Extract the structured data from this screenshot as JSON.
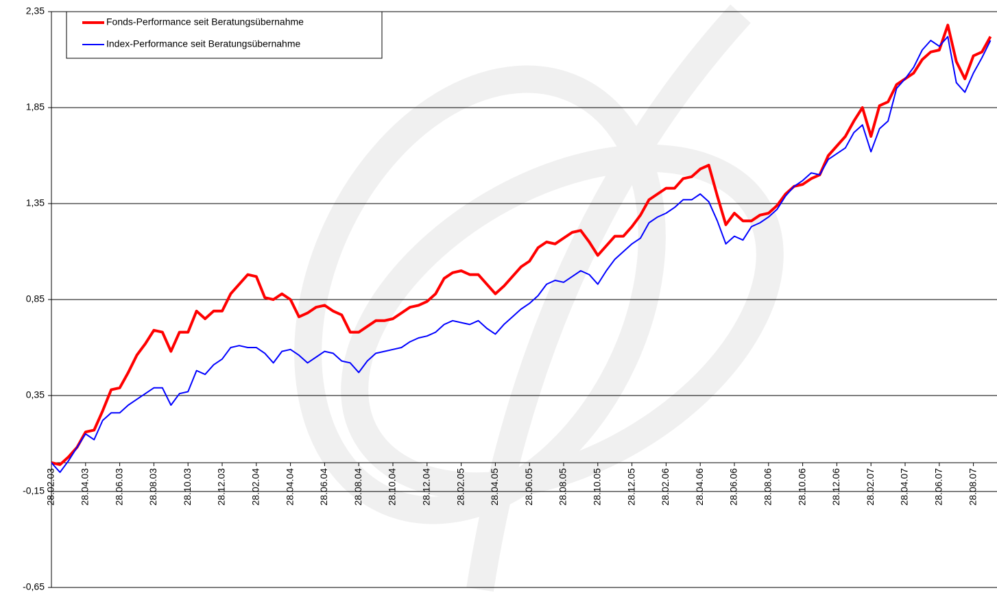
{
  "chart_data": {
    "type": "line",
    "categories": [
      "28.02.03",
      null,
      null,
      null,
      "28.04.03",
      null,
      null,
      null,
      "28.06.03",
      null,
      null,
      null,
      "28.08.03",
      null,
      null,
      null,
      "28.10.03",
      null,
      null,
      null,
      "28.12.03",
      null,
      null,
      null,
      "28.02.04",
      null,
      null,
      null,
      "28.04.04",
      null,
      null,
      null,
      "28.06.04",
      null,
      null,
      null,
      "28.08.04",
      null,
      null,
      null,
      "28.10.04",
      null,
      null,
      null,
      "28.12.04",
      null,
      null,
      null,
      "28.02.05",
      null,
      null,
      null,
      "28.04.05",
      null,
      null,
      null,
      "28.06.05",
      null,
      null,
      null,
      "28.08.05",
      null,
      null,
      null,
      "28.10.05",
      null,
      null,
      null,
      "28.12.05",
      null,
      null,
      null,
      "28.02.06",
      null,
      null,
      null,
      "28.04.06",
      null,
      null,
      null,
      "28.06.06",
      null,
      null,
      null,
      "28.08.06",
      null,
      null,
      null,
      "28.10.06",
      null,
      null,
      null,
      "28.12.06",
      null,
      null,
      null,
      "28.02.07",
      null,
      null,
      null,
      "28.04.07",
      null,
      null,
      null,
      "28.06.07",
      null,
      null,
      null,
      "28.08.07",
      null,
      null
    ],
    "series": [
      {
        "name": "Fonds-Performance seit Beratungsübernahme",
        "color": "#ff0000",
        "width": 4,
        "values": [
          0.0,
          -0.01,
          0.03,
          0.08,
          0.16,
          0.17,
          0.27,
          0.38,
          0.39,
          0.47,
          0.56,
          0.62,
          0.69,
          0.68,
          0.58,
          0.68,
          0.68,
          0.79,
          0.75,
          0.79,
          0.79,
          0.88,
          0.93,
          0.98,
          0.97,
          0.86,
          0.85,
          0.88,
          0.85,
          0.76,
          0.78,
          0.81,
          0.82,
          0.79,
          0.77,
          0.68,
          0.68,
          0.71,
          0.74,
          0.74,
          0.75,
          0.78,
          0.81,
          0.82,
          0.84,
          0.88,
          0.96,
          0.99,
          1.0,
          0.98,
          0.98,
          0.93,
          0.88,
          0.92,
          0.97,
          1.02,
          1.05,
          1.12,
          1.15,
          1.14,
          1.17,
          1.2,
          1.21,
          1.15,
          1.08,
          1.13,
          1.18,
          1.18,
          1.23,
          1.29,
          1.37,
          1.4,
          1.43,
          1.43,
          1.48,
          1.49,
          1.53,
          1.55,
          1.39,
          1.24,
          1.3,
          1.26,
          1.26,
          1.29,
          1.3,
          1.34,
          1.4,
          1.44,
          1.45,
          1.48,
          1.5,
          1.6,
          1.65,
          1.7,
          1.78,
          1.85,
          1.7,
          1.86,
          1.88,
          1.97,
          2.0,
          2.03,
          2.1,
          2.14,
          2.15,
          2.28,
          2.09,
          2.0,
          2.12,
          2.14,
          2.22
        ]
      },
      {
        "name": "Index-Performance seit Beratungsübernahme",
        "color": "#0000ff",
        "width": 2,
        "values": [
          0.0,
          -0.05,
          0.01,
          0.08,
          0.15,
          0.12,
          0.22,
          0.26,
          0.26,
          0.3,
          0.33,
          0.36,
          0.39,
          0.39,
          0.3,
          0.36,
          0.37,
          0.48,
          0.46,
          0.51,
          0.54,
          0.6,
          0.61,
          0.6,
          0.6,
          0.57,
          0.52,
          0.58,
          0.59,
          0.56,
          0.52,
          0.55,
          0.58,
          0.57,
          0.53,
          0.52,
          0.47,
          0.53,
          0.57,
          0.58,
          0.59,
          0.6,
          0.63,
          0.65,
          0.66,
          0.68,
          0.72,
          0.74,
          0.73,
          0.72,
          0.74,
          0.7,
          0.67,
          0.72,
          0.76,
          0.8,
          0.83,
          0.87,
          0.93,
          0.95,
          0.94,
          0.97,
          1.0,
          0.98,
          0.93,
          1.0,
          1.06,
          1.1,
          1.14,
          1.17,
          1.25,
          1.28,
          1.3,
          1.33,
          1.37,
          1.37,
          1.4,
          1.36,
          1.26,
          1.14,
          1.18,
          1.16,
          1.23,
          1.25,
          1.28,
          1.32,
          1.39,
          1.44,
          1.47,
          1.51,
          1.5,
          1.58,
          1.61,
          1.64,
          1.72,
          1.76,
          1.62,
          1.74,
          1.78,
          1.95,
          2.0,
          2.06,
          2.15,
          2.2,
          2.17,
          2.22,
          1.98,
          1.93,
          2.03,
          2.11,
          2.2
        ]
      }
    ],
    "ylim": [
      -0.65,
      2.35
    ],
    "yticks": [
      {
        "value": -0.65,
        "label": "-0,65"
      },
      {
        "value": -0.15,
        "label": "-0,15"
      },
      {
        "value": 0.35,
        "label": "0,35"
      },
      {
        "value": 0.85,
        "label": "0,85"
      },
      {
        "value": 1.35,
        "label": "1,35"
      },
      {
        "value": 1.85,
        "label": "1,85"
      },
      {
        "value": 2.35,
        "label": "2,35"
      }
    ],
    "grid": true
  }
}
